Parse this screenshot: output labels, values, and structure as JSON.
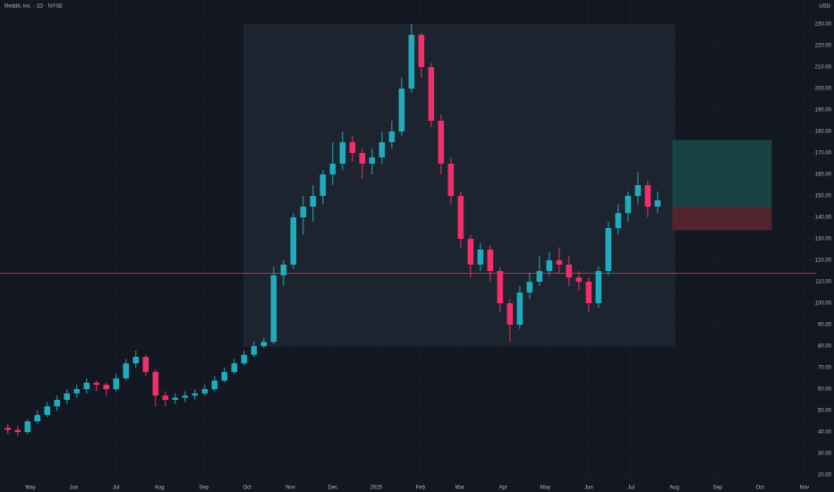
{
  "chart_data": {
    "type": "candlestick",
    "title": "Reddit, Inc. · 1D · NYSE",
    "currency": "USD",
    "x": [
      0,
      1,
      2,
      3,
      4,
      5,
      6,
      7,
      8,
      9,
      10,
      11,
      12,
      13,
      14,
      15,
      16,
      17,
      18,
      19,
      20,
      21,
      22,
      23,
      24,
      25,
      26,
      27,
      28,
      29,
      30,
      31,
      32,
      33,
      34,
      35,
      36,
      37,
      38,
      39,
      40,
      41,
      42,
      43,
      44,
      45,
      46,
      47,
      48,
      49,
      50,
      51,
      52,
      53,
      54,
      55,
      56,
      57,
      58,
      59,
      60,
      61,
      62,
      63,
      64,
      65,
      66
    ],
    "open": [
      42,
      41,
      40,
      45,
      48,
      52,
      55,
      58,
      60,
      63,
      62,
      60,
      65,
      72,
      75,
      68,
      57,
      55,
      56,
      57,
      58,
      60,
      64,
      68,
      72,
      76,
      80,
      82,
      113,
      118,
      140,
      145,
      150,
      160,
      165,
      175,
      170,
      165,
      168,
      175,
      180,
      200,
      225,
      210,
      185,
      165,
      150,
      130,
      118,
      125,
      115,
      100,
      90,
      105,
      110,
      115,
      120,
      118,
      112,
      110,
      100,
      115,
      135,
      142,
      150,
      155,
      145
    ],
    "high": [
      44,
      43,
      46,
      50,
      54,
      57,
      60,
      62,
      65,
      64,
      63,
      67,
      74,
      78,
      76,
      69,
      59,
      58,
      59,
      60,
      62,
      66,
      70,
      74,
      78,
      82,
      84,
      117,
      120,
      142,
      150,
      155,
      162,
      175,
      180,
      178,
      172,
      172,
      180,
      185,
      205,
      230,
      226,
      212,
      188,
      168,
      152,
      132,
      128,
      127,
      117,
      102,
      108,
      114,
      122,
      124,
      126,
      122,
      115,
      112,
      117,
      138,
      146,
      152,
      161,
      157,
      152
    ],
    "low": [
      39,
      38,
      39,
      44,
      47,
      50,
      53,
      56,
      58,
      59,
      57,
      59,
      64,
      70,
      66,
      52,
      52,
      53,
      54,
      55,
      57,
      59,
      63,
      67,
      71,
      75,
      79,
      81,
      108,
      116,
      132,
      138,
      146,
      155,
      162,
      166,
      158,
      160,
      165,
      172,
      178,
      198,
      205,
      182,
      160,
      146,
      126,
      112,
      115,
      110,
      96,
      82,
      88,
      102,
      108,
      113,
      114,
      108,
      106,
      96,
      98,
      113,
      132,
      138,
      146,
      140,
      142
    ],
    "close": [
      41,
      40,
      45,
      48,
      52,
      55,
      58,
      60,
      63,
      62,
      60,
      65,
      72,
      75,
      68,
      57,
      55,
      56,
      57,
      58,
      60,
      64,
      68,
      72,
      76,
      80,
      82,
      113,
      118,
      140,
      145,
      150,
      160,
      165,
      175,
      170,
      165,
      168,
      175,
      180,
      200,
      225,
      210,
      185,
      165,
      150,
      130,
      118,
      125,
      115,
      100,
      90,
      105,
      110,
      115,
      120,
      118,
      112,
      110,
      100,
      115,
      135,
      142,
      150,
      155,
      145,
      148
    ],
    "up_color": "#22abbd",
    "down_color": "#f0306b",
    "xlim": [
      -0.8,
      82.1
    ],
    "xticks": [
      {
        "value": 2.3,
        "label": "May"
      },
      {
        "value": 6.7,
        "label": "Jun"
      },
      {
        "value": 11,
        "label": "Jul"
      },
      {
        "value": 15.4,
        "label": "Aug"
      },
      {
        "value": 19.9,
        "label": "Sep"
      },
      {
        "value": 24.3,
        "label": "Oct"
      },
      {
        "value": 28.7,
        "label": "Nov"
      },
      {
        "value": 33,
        "label": "Dec"
      },
      {
        "value": 37.4,
        "label": "2025"
      },
      {
        "value": 41.9,
        "label": "Feb"
      },
      {
        "value": 45.9,
        "label": "Mar"
      },
      {
        "value": 50.3,
        "label": "Apr"
      },
      {
        "value": 54.6,
        "label": "May"
      },
      {
        "value": 59,
        "label": "Jun"
      },
      {
        "value": 63.3,
        "label": "Jul"
      },
      {
        "value": 67.7,
        "label": "Aug"
      },
      {
        "value": 72.1,
        "label": "Sep"
      },
      {
        "value": 76.4,
        "label": "Oct"
      },
      {
        "value": 80.9,
        "label": "Nov"
      }
    ],
    "ylim": [
      16.25,
      241.25
    ],
    "yticks": [
      {
        "value": 20,
        "label": "20.00"
      },
      {
        "value": 30,
        "label": "30.00"
      },
      {
        "value": 40,
        "label": "40.00"
      },
      {
        "value": 50,
        "label": "50.00"
      },
      {
        "value": 60,
        "label": "60.00"
      },
      {
        "value": 70,
        "label": "70.00"
      },
      {
        "value": 80,
        "label": "80.00"
      },
      {
        "value": 90,
        "label": "90.00"
      },
      {
        "value": 100,
        "label": "100.00"
      },
      {
        "value": 110,
        "label": "110.00"
      },
      {
        "value": 120,
        "label": "120.00"
      },
      {
        "value": 130,
        "label": "130.00"
      },
      {
        "value": 140,
        "label": "140.00"
      },
      {
        "value": 150,
        "label": "150.00"
      },
      {
        "value": 160,
        "label": "160.00"
      },
      {
        "value": 170,
        "label": "170.00"
      },
      {
        "value": 180,
        "label": "180.00"
      },
      {
        "value": 190,
        "label": "190.00"
      },
      {
        "value": 200,
        "label": "200.00"
      },
      {
        "value": 210,
        "label": "210.00"
      },
      {
        "value": 220,
        "label": "220.00"
      },
      {
        "value": 230,
        "label": "230.00"
      }
    ],
    "horizontal_line": 114,
    "position": {
      "entry": 145,
      "target": 176,
      "stop": 134,
      "start": 67.5,
      "end": 77.6
    }
  }
}
